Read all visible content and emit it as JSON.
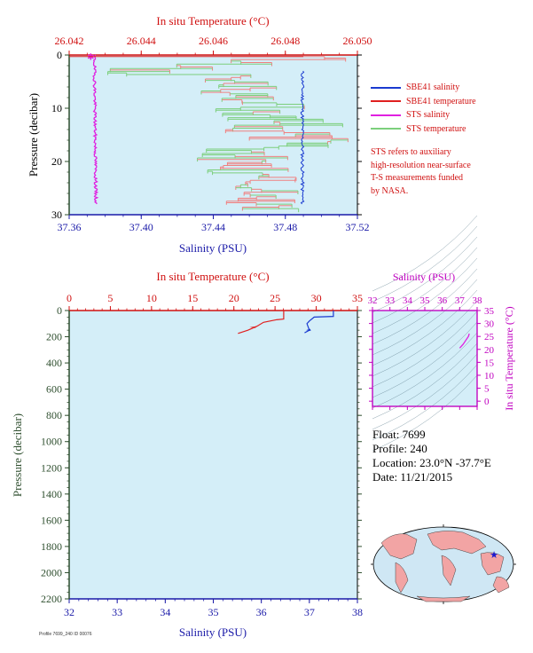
{
  "colors": {
    "plot_bg": "#d4eef8",
    "salinity_axis": "#1a1aa8",
    "temperature_axis": "#d01010",
    "pressure_axis": "#2f4f2f",
    "inset_axis": "#c000c0",
    "sbe_salinity": "#1a3ad0",
    "sbe_temperature": "#e02020",
    "sts_salinity": "#e020e0",
    "sts_temperature": "#7ccf7c",
    "sts_salinity_alt": "#f08080"
  },
  "top_plot": {
    "top_axis_title": "In situ Temperature (°C)",
    "bottom_axis_title": "Salinity (PSU)",
    "left_axis_title": "Pressure (decibar)",
    "temp_ticks": [
      "26.042",
      "26.044",
      "26.046",
      "26.048",
      "26.050"
    ],
    "sal_ticks": [
      "37.36",
      "37.40",
      "37.44",
      "37.48",
      "37.52"
    ],
    "pres_ticks": [
      "0",
      "10",
      "20",
      "30"
    ]
  },
  "legend": [
    {
      "label": "SBE41 salinity",
      "color": "#1a3ad0"
    },
    {
      "label": "SBE41 temperature",
      "color": "#e02020"
    },
    {
      "label": "STS salinity",
      "color": "#e020e0"
    },
    {
      "label": "STS temperature",
      "color": "#7ccf7c"
    }
  ],
  "note_lines": [
    "STS refers to auxiliary",
    "high-resolution near-surface",
    "T-S measurements funded",
    "by NASA."
  ],
  "bottom_plot": {
    "top_axis_title": "In situ Temperature (°C)",
    "bottom_axis_title": "Salinity (PSU)",
    "left_axis_title": "Pressure (decibar)",
    "temp_ticks": [
      "0",
      "5",
      "10",
      "15",
      "20",
      "25",
      "30",
      "35"
    ],
    "sal_ticks": [
      "32",
      "33",
      "34",
      "35",
      "36",
      "37",
      "38"
    ],
    "pres_ticks": [
      "0",
      "200",
      "400",
      "600",
      "800",
      "1000",
      "1200",
      "1400",
      "1600",
      "1800",
      "2000",
      "2200"
    ]
  },
  "inset": {
    "top_axis_title": "Salinity (PSU)",
    "right_axis_title": "In situ Temperature (°C)",
    "sal_ticks": [
      "32",
      "33",
      "34",
      "35",
      "36",
      "37",
      "38"
    ],
    "temp_ticks": [
      "0",
      "5",
      "10",
      "15",
      "20",
      "25",
      "30",
      "35"
    ]
  },
  "info": {
    "float": "Float:  7699",
    "profile": "Profile:  240",
    "location": "Location:  23.0°N  -37.7°E",
    "date": "Date:  11/21/2015"
  },
  "footer_text": "Profile 7699_240 ID 00076",
  "chart_data": [
    {
      "type": "line",
      "title": "",
      "xlabel": "Salinity (PSU)",
      "x2label": "In situ Temperature (°C)",
      "ylabel": "Pressure (decibar)",
      "xlim": [
        37.36,
        37.52
      ],
      "x2lim": [
        26.042,
        26.05
      ],
      "ylim": [
        30,
        0
      ],
      "series": [
        {
          "name": "SBE41 salinity",
          "x": [
            37.49,
            37.49,
            37.489,
            37.49,
            37.491,
            37.49,
            37.49
          ],
          "y": [
            3,
            6,
            10,
            14,
            18,
            22,
            28
          ]
        },
        {
          "name": "STS salinity",
          "x": [
            37.373,
            37.374,
            37.374,
            37.375,
            37.374,
            37.375,
            37.375
          ],
          "y": [
            0,
            5,
            10,
            15,
            20,
            25,
            28
          ]
        },
        {
          "name": "STS temperature",
          "x2": [
            26.042,
            26.049,
            26.043,
            26.046,
            26.045,
            26.048,
            26.046,
            26.049,
            26.046,
            26.047,
            26.045,
            26.049
          ],
          "y": [
            0.5,
            1,
            3,
            5,
            8,
            10,
            13,
            15,
            18,
            21,
            25,
            28
          ]
        },
        {
          "name": "SBE41 temperature",
          "x2": [
            26.045,
            26.047,
            26.046,
            26.048,
            26.046,
            26.047
          ],
          "y": [
            4,
            8,
            12,
            16,
            22,
            28
          ]
        }
      ]
    },
    {
      "type": "line",
      "title": "",
      "xlabel": "Salinity (PSU)",
      "x2label": "In situ Temperature (°C)",
      "ylabel": "Pressure (decibar)",
      "xlim": [
        32,
        38
      ],
      "x2lim": [
        0,
        35
      ],
      "ylim": [
        2200,
        0
      ],
      "series": [
        {
          "name": "Temperature",
          "x2": [
            26.05,
            26.05,
            25.2,
            23.6,
            22.8,
            21.7,
            20.5
          ],
          "y": [
            0,
            65,
            70,
            90,
            120,
            150,
            175
          ]
        },
        {
          "name": "Salinity",
          "x": [
            37.5,
            37.5,
            37.1,
            37.0,
            36.95,
            37.0,
            36.9
          ],
          "y": [
            0,
            45,
            50,
            80,
            100,
            150,
            170
          ]
        }
      ]
    },
    {
      "type": "line",
      "title": "",
      "xlabel": "Salinity (PSU)",
      "ylabel": "In situ Temperature (°C)",
      "xlim": [
        32,
        38
      ],
      "ylim": [
        -2,
        35
      ],
      "series": [
        {
          "x": [
            37.55,
            37.5,
            37.35,
            37.2,
            37.0
          ],
          "y": [
            26.05,
            25.0,
            23.5,
            22.0,
            20.5
          ]
        }
      ]
    }
  ]
}
